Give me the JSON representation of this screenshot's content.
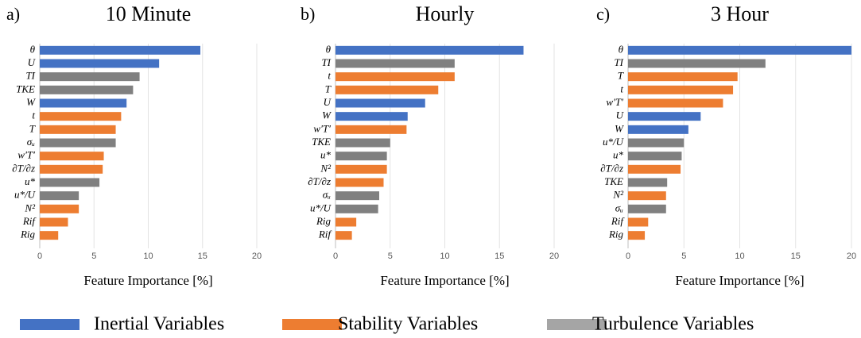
{
  "chart_data": [
    {
      "type": "bar",
      "orientation": "horizontal",
      "panel_label": "a)",
      "title": "10 Minute",
      "xlabel": "Feature Importance [%]",
      "categories": [
        "θ",
        "U",
        "TI",
        "TKE",
        "W",
        "t",
        "T",
        "σᵤ",
        "w′T′",
        "∂T/∂z",
        "u*",
        "u*/U",
        "N²",
        "Rif",
        "Rig"
      ],
      "series": [
        {
          "name": "Inertial Variables",
          "color": "#4472c4",
          "values": [
            14.8,
            11.0,
            null,
            null,
            8.0,
            null,
            null,
            null,
            null,
            null,
            null,
            null,
            null,
            null,
            null
          ]
        },
        {
          "name": "Stability Variables",
          "color": "#ed7d31",
          "values": [
            null,
            null,
            null,
            null,
            null,
            7.5,
            7.0,
            null,
            5.9,
            5.8,
            null,
            null,
            3.6,
            2.6,
            1.7
          ]
        },
        {
          "name": "Turbulence Variables",
          "color": "#808080",
          "values": [
            null,
            null,
            9.2,
            8.6,
            null,
            null,
            null,
            7.0,
            null,
            null,
            5.5,
            3.6,
            null,
            null,
            null
          ]
        }
      ],
      "xlim": [
        0,
        20
      ],
      "xticks": [
        0,
        5,
        10,
        15,
        20
      ],
      "grid": true
    },
    {
      "type": "bar",
      "orientation": "horizontal",
      "panel_label": "b)",
      "title": "Hourly",
      "xlabel": "Feature Importance [%]",
      "categories": [
        "θ",
        "TI",
        "t",
        "T",
        "U",
        "W",
        "w′T′",
        "TKE",
        "u*",
        "N²",
        "∂T/∂z",
        "σᵤ",
        "u*/U",
        "Rig",
        "Rif"
      ],
      "series": [
        {
          "name": "Inertial Variables",
          "color": "#4472c4",
          "values": [
            17.2,
            null,
            null,
            null,
            8.2,
            6.6,
            null,
            null,
            null,
            null,
            null,
            null,
            null,
            null,
            null
          ]
        },
        {
          "name": "Stability Variables",
          "color": "#ed7d31",
          "values": [
            null,
            null,
            10.9,
            9.4,
            null,
            null,
            6.5,
            null,
            null,
            4.7,
            4.4,
            null,
            null,
            1.9,
            1.5
          ]
        },
        {
          "name": "Turbulence Variables",
          "color": "#808080",
          "values": [
            null,
            10.9,
            null,
            null,
            null,
            null,
            null,
            5.0,
            4.7,
            null,
            null,
            4.0,
            3.9,
            null,
            null
          ]
        }
      ],
      "xlim": [
        0,
        20
      ],
      "xticks": [
        0,
        5,
        10,
        15,
        20
      ],
      "grid": true
    },
    {
      "type": "bar",
      "orientation": "horizontal",
      "panel_label": "c)",
      "title": "3 Hour",
      "xlabel": "Feature Importance [%]",
      "categories": [
        "θ",
        "TI",
        "T",
        "t",
        "w′T′",
        "U",
        "W",
        "u*/U",
        "u*",
        "∂T/∂z",
        "TKE",
        "N²",
        "σᵤ",
        "Rif",
        "Rig"
      ],
      "series": [
        {
          "name": "Inertial Variables",
          "color": "#4472c4",
          "values": [
            20.0,
            null,
            null,
            null,
            null,
            6.5,
            5.4,
            null,
            null,
            null,
            null,
            null,
            null,
            null,
            null
          ]
        },
        {
          "name": "Stability Variables",
          "color": "#ed7d31",
          "values": [
            null,
            null,
            9.8,
            9.4,
            8.5,
            null,
            null,
            null,
            null,
            4.7,
            null,
            3.4,
            null,
            1.8,
            1.5
          ]
        },
        {
          "name": "Turbulence Variables",
          "color": "#808080",
          "values": [
            null,
            12.3,
            null,
            null,
            null,
            null,
            null,
            5.0,
            4.8,
            null,
            3.5,
            null,
            3.4,
            null,
            null
          ]
        }
      ],
      "xlim": [
        0,
        20
      ],
      "xticks": [
        0,
        5,
        10,
        15,
        20
      ],
      "grid": true
    }
  ]
}
